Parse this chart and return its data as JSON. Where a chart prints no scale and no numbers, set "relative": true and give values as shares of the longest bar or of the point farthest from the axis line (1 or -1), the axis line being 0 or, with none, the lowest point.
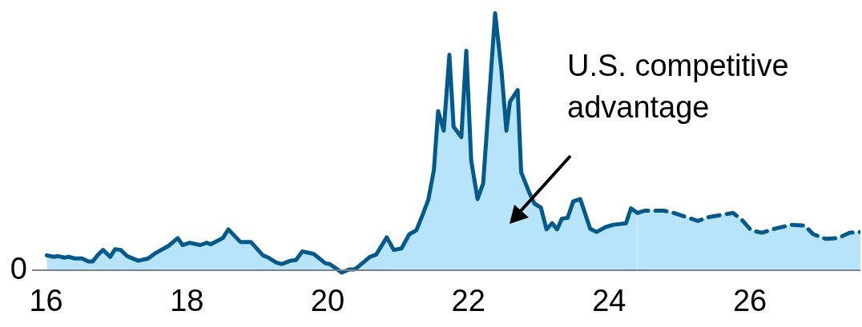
{
  "chart_data": {
    "type": "area",
    "relative": true,
    "xlim": [
      15.8,
      27.57
    ],
    "xticks": [
      16,
      18,
      20,
      22,
      24,
      26
    ],
    "grid": false,
    "legend": false,
    "tick_labels": "x",
    "annotations": [
      "0",
      "U.S. competitive advantage"
    ],
    "series": [
      {
        "color": "#035a8a",
        "line_style": "solid",
        "x": [
          16.01,
          16.11,
          16.17,
          16.26,
          16.32,
          16.41,
          16.51,
          16.6,
          16.66,
          16.74,
          16.81,
          16.91,
          16.98,
          17.06,
          17.15,
          17.31,
          17.45,
          17.54,
          17.74,
          17.87,
          17.94,
          18.04,
          18.19,
          18.28,
          18.34,
          18.51,
          18.59,
          18.76,
          18.91,
          19.08,
          19.16,
          19.27,
          19.35,
          19.47,
          19.55,
          19.64,
          19.8,
          19.97,
          20.03,
          20.2,
          20.31,
          20.38,
          20.44,
          20.6,
          20.69,
          20.84,
          20.94,
          21.05,
          21.16,
          21.26,
          21.35,
          21.43,
          21.51,
          21.57,
          21.61,
          21.65,
          21.73,
          21.79,
          21.9,
          21.97,
          22.04,
          22.13,
          22.21,
          22.38,
          22.47,
          22.54,
          22.59,
          22.7,
          22.75,
          22.87,
          22.94,
          23.03,
          23.11,
          23.19,
          23.26,
          23.33,
          23.41,
          23.49,
          23.59,
          23.73,
          23.82,
          23.95,
          24.06,
          24.24,
          24.31,
          24.4
        ],
        "values": [
          0.058,
          0.052,
          0.055,
          0.049,
          0.052,
          0.046,
          0.046,
          0.034,
          0.034,
          0.061,
          0.079,
          0.052,
          0.082,
          0.079,
          0.055,
          0.037,
          0.046,
          0.064,
          0.095,
          0.125,
          0.098,
          0.107,
          0.098,
          0.107,
          0.101,
          0.125,
          0.159,
          0.11,
          0.11,
          0.058,
          0.049,
          0.03,
          0.024,
          0.037,
          0.04,
          0.073,
          0.064,
          0.027,
          0.024,
          -0.009,
          0.003,
          0.003,
          0.015,
          0.052,
          0.061,
          0.128,
          0.079,
          0.085,
          0.14,
          0.155,
          0.216,
          0.274,
          0.39,
          0.619,
          0.582,
          0.543,
          0.838,
          0.558,
          0.518,
          0.854,
          0.427,
          0.277,
          0.338,
          1,
          0.777,
          0.543,
          0.655,
          0.701,
          0.381,
          0.299,
          0.259,
          0.244,
          0.159,
          0.183,
          0.159,
          0.201,
          0.204,
          0.268,
          0.277,
          0.162,
          0.149,
          0.168,
          0.177,
          0.183,
          0.241,
          0.223
        ]
      },
      {
        "color": "#035a8a",
        "line_style": "dashed",
        "x": [
          24.4,
          24.51,
          24.77,
          24.92,
          25.26,
          25.42,
          25.76,
          25.88,
          26.02,
          26.17,
          26.36,
          26.59,
          26.78,
          26.9,
          27.08,
          27.25,
          27.42,
          27.57
        ],
        "values": [
          0.223,
          0.232,
          0.232,
          0.223,
          0.192,
          0.207,
          0.223,
          0.198,
          0.155,
          0.146,
          0.162,
          0.177,
          0.174,
          0.14,
          0.122,
          0.125,
          0.146,
          0.149
        ]
      }
    ]
  }
}
